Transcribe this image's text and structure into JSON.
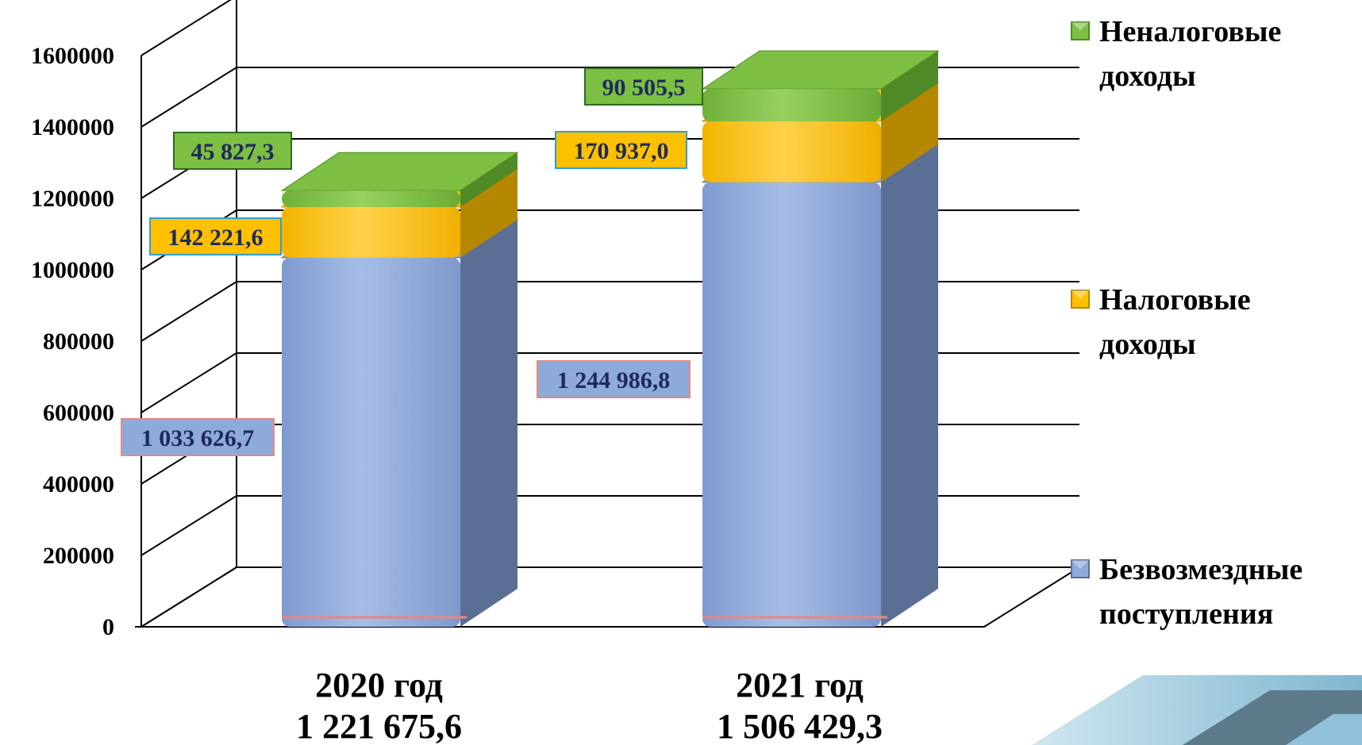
{
  "chart_data": {
    "type": "bar",
    "stacked": true,
    "three_d": true,
    "categories": [
      "2020 год",
      "2021 год"
    ],
    "category_totals": [
      "1 221 675,6",
      "1 506 429,3"
    ],
    "ylim": [
      0,
      1600000
    ],
    "yticks": [
      "0",
      "200000",
      "400000",
      "600000",
      "800000",
      "1000000",
      "1200000",
      "1400000",
      "1600000"
    ],
    "grid": true,
    "legend_position": "right",
    "series": [
      {
        "name": "Безвозмездные поступления",
        "legend_lines": [
          "Безвозмездные",
          "поступления"
        ],
        "values": [
          1033626.7,
          1244986.8
        ],
        "labels": [
          "1 033 626,7",
          "1 244 986,8"
        ],
        "color": "#8eaadb",
        "side_color": "#5b6e94",
        "label_border": "#e8877f"
      },
      {
        "name": "Налоговые доходы",
        "legend_lines": [
          "Налоговые",
          "доходы"
        ],
        "values": [
          142221.6,
          170937.0
        ],
        "labels": [
          "142 221,6",
          "170 937,0"
        ],
        "color": "#ffc000",
        "side_color": "#b58700",
        "label_border": "#2e9fd6"
      },
      {
        "name": "Неналоговые доходы",
        "legend_lines": [
          "Неналоговые",
          "доходы"
        ],
        "values": [
          45827.3,
          90505.5
        ],
        "labels": [
          "45 827,3",
          "90 505,5"
        ],
        "color": "#7cbf42",
        "side_color": "#4f8a26",
        "label_border": "#2f6a1d"
      }
    ]
  }
}
